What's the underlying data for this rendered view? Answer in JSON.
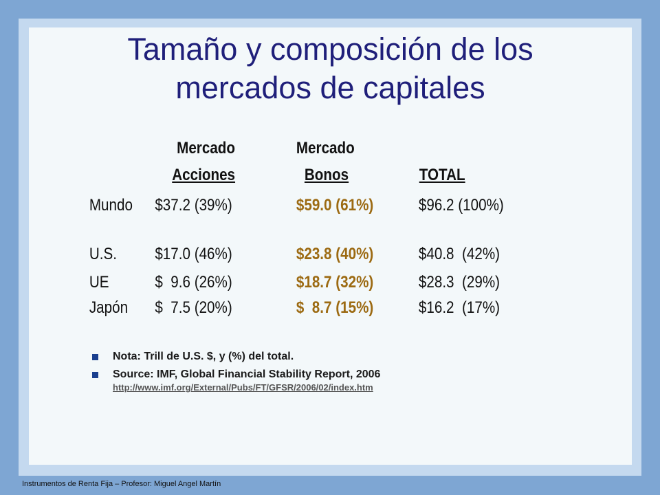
{
  "title_line1": "Tamaño y composición de los",
  "title_line2": "mercados de capitales",
  "headers": {
    "col1_line1": "Mercado",
    "col1_line2": "Acciones",
    "col2_line1": "Mercado",
    "col2_line2": "Bonos",
    "col3_line2": "TOTAL"
  },
  "rows": [
    {
      "label": "Mundo",
      "acciones": "$37.2 (39%)",
      "bonos": "$59.0 (61%)",
      "total": "$96.2 (100%)"
    },
    {
      "label": "U.S.",
      "acciones": "$17.0 (46%)",
      "bonos": "$23.8 (40%)",
      "total": "$40.8  (42%)"
    },
    {
      "label": "UE",
      "acciones": "$  9.6 (26%)",
      "bonos": "$18.7 (32%)",
      "total": "$28.3  (29%)"
    },
    {
      "label": "Japón",
      "acciones": "$  7.5 (20%)",
      "bonos": "$  8.7 (15%)",
      "total": "$16.2  (17%)"
    }
  ],
  "notes": {
    "note1": "Nota: Trill de U.S. $, y (%) del total.",
    "note2": "Source: IMF, Global Financial Stability Report, 2006",
    "link": "http://www.imf.org/External/Pubs/FT/GFSR/2006/02/index.htm"
  },
  "footer": "Instrumentos de Renta Fija – Profesor: Miguel Angel Martín",
  "colors": {
    "title": "#1f1f7a",
    "bonds": "#9c6a12",
    "background": "#7ea6d3"
  }
}
